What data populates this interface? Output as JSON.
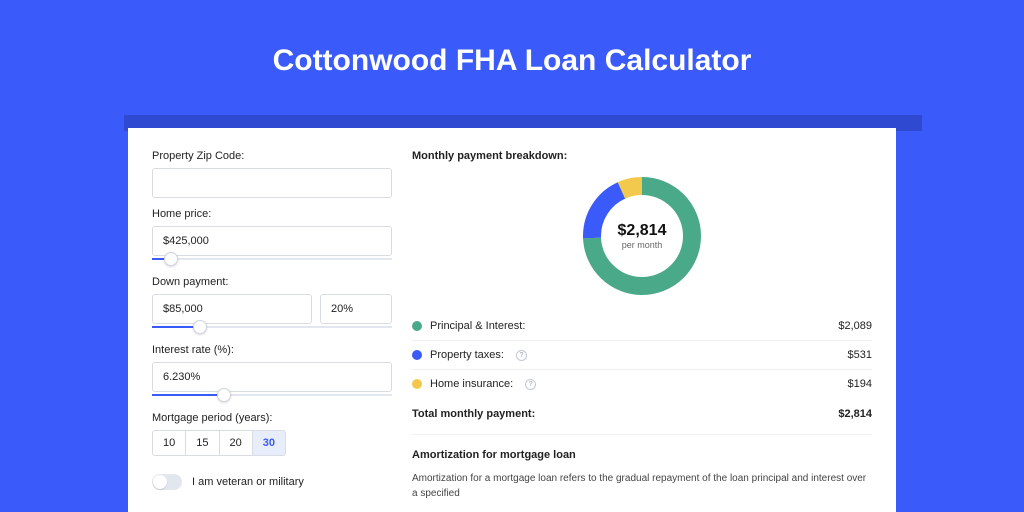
{
  "page": {
    "title": "Cottonwood FHA Loan Calculator",
    "background_color": "#3a5af9",
    "shadow_color": "#2f4ad0",
    "card_bg": "#ffffff"
  },
  "form": {
    "zip": {
      "label": "Property Zip Code:",
      "value": ""
    },
    "home_price": {
      "label": "Home price:",
      "value": "$425,000",
      "slider_pct": 8
    },
    "down_payment": {
      "label": "Down payment:",
      "amount": "$85,000",
      "percent": "20%",
      "slider_pct": 20
    },
    "interest": {
      "label": "Interest rate (%):",
      "value": "6.230%",
      "slider_pct": 30
    },
    "period": {
      "label": "Mortgage period (years):",
      "options": [
        "10",
        "15",
        "20",
        "30"
      ],
      "selected": "30"
    },
    "veteran": {
      "label": "I am veteran or military",
      "on": false
    }
  },
  "breakdown": {
    "title": "Monthly payment breakdown:",
    "center_amount": "$2,814",
    "center_sub": "per month",
    "items": [
      {
        "label": "Principal & Interest:",
        "value": "$2,089",
        "value_num": 2089,
        "color": "#4aa989",
        "info": false
      },
      {
        "label": "Property taxes:",
        "value": "$531",
        "value_num": 531,
        "color": "#3a5af9",
        "info": true
      },
      {
        "label": "Home insurance:",
        "value": "$194",
        "value_num": 194,
        "color": "#f2c94c",
        "info": true
      }
    ],
    "total": {
      "label": "Total monthly payment:",
      "value": "$2,814"
    },
    "donut": {
      "stroke_width": 18,
      "track_color": "#ffffff"
    }
  },
  "amort": {
    "title": "Amortization for mortgage loan",
    "body": "Amortization for a mortgage loan refers to the gradual repayment of the loan principal and interest over a specified"
  }
}
